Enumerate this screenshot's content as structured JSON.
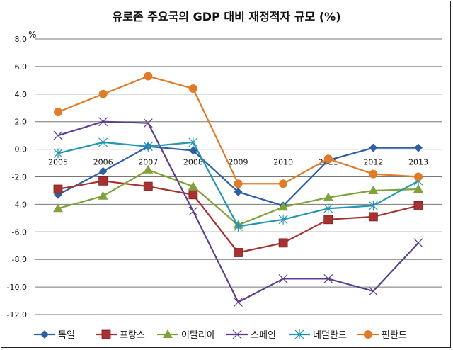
{
  "chart_data": {
    "type": "line",
    "title": "유로존 주요국의 GDP 대비 재정적자 규모 (%)",
    "ylabel": "%",
    "xlabel": "",
    "categories": [
      "2005",
      "2006",
      "2007",
      "2008",
      "2009",
      "2010",
      "2011",
      "2012",
      "2013"
    ],
    "ylim": [
      -12,
      8
    ],
    "yticks": [
      "8.0",
      "6.0",
      "4.0",
      "2.0",
      "0.0",
      "-2.0",
      "-4.0",
      "-6.0",
      "-8.0",
      "-10.0",
      "-12.0"
    ],
    "grid": true,
    "legend_position": "bottom",
    "series": [
      {
        "name": "독일",
        "color": "#2e5fa3",
        "marker": "diamond",
        "values": [
          -3.3,
          -1.6,
          0.2,
          -0.1,
          -3.1,
          -4.1,
          -0.8,
          0.1,
          0.1
        ]
      },
      {
        "name": "프랑스",
        "color": "#a83232",
        "marker": "square",
        "values": [
          -2.9,
          -2.3,
          -2.7,
          -3.3,
          -7.5,
          -6.8,
          -5.1,
          -4.9,
          -4.1
        ]
      },
      {
        "name": "이탈리아",
        "color": "#7fa33a",
        "marker": "triangle",
        "values": [
          -4.3,
          -3.4,
          -1.5,
          -2.7,
          -5.5,
          -4.2,
          -3.5,
          -3.0,
          -2.9
        ]
      },
      {
        "name": "스페인",
        "color": "#5c3f8c",
        "marker": "x",
        "values": [
          1.0,
          2.0,
          1.9,
          -4.5,
          -11.1,
          -9.4,
          -9.4,
          -10.3,
          -6.8
        ]
      },
      {
        "name": "네덜란드",
        "color": "#2596b0",
        "marker": "star",
        "values": [
          -0.3,
          0.5,
          0.2,
          0.5,
          -5.6,
          -5.1,
          -4.3,
          -4.1,
          -2.3
        ]
      },
      {
        "name": "핀란드",
        "color": "#e07b2a",
        "marker": "circle",
        "values": [
          2.7,
          4.0,
          5.3,
          4.4,
          -2.5,
          -2.5,
          -0.7,
          -1.8,
          -2.0
        ]
      }
    ]
  }
}
